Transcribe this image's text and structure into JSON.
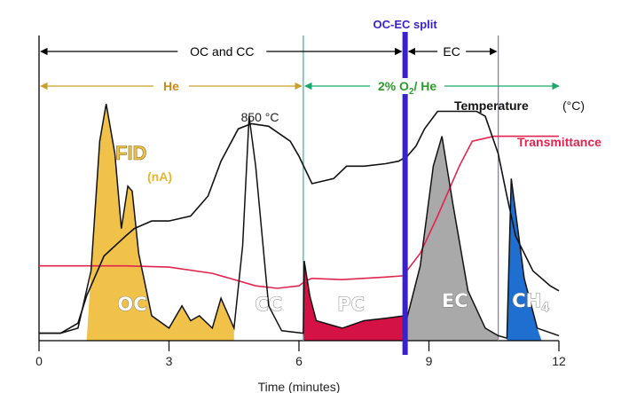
{
  "figure": {
    "split_label": "OC-EC split",
    "ranges": [
      {
        "label": "OC and CC",
        "x_start": 0,
        "x_end": 8.45
      },
      {
        "label": "EC",
        "x_start": 8.45,
        "x_end": 10.6
      }
    ],
    "gases": [
      {
        "label": "He",
        "x_start": 0,
        "x_end": 6.1
      },
      {
        "label": "2% O",
        "subscript": "2",
        "suffix": "/ He",
        "x_start": 6.1,
        "x_end": 12
      }
    ],
    "labels": {
      "temperature": "Temperature",
      "temperature_unit": "(°C)",
      "transmittance": "Transmittance",
      "fid": "FID",
      "fid_unit": "(nA)",
      "peak_temp": "850 °C",
      "oc": "OC",
      "cc": "CC",
      "pc": "PC",
      "ec": "EC",
      "ch4_main": "CH",
      "ch4_sub": "4"
    },
    "colors": {
      "oc_fill": "#f0c24a",
      "pc_fill": "#d51245",
      "ec_fill": "#a9a9a9",
      "ch4_fill": "#1f6fd1",
      "temperature_line": "#111111",
      "transmittance_line": "#e0244f",
      "split_line": "#3a22c9",
      "he_arrow": "#c8a02a",
      "o2_arrow": "#1aa86a",
      "he_text": "#c98c1a",
      "o2_text": "#2c9a2c",
      "transition_line_1": "#3bb0a0",
      "transition_line_2": "#8a6ad8"
    }
  },
  "chart_data": {
    "type": "line",
    "title": "",
    "xlabel": "Time (minutes)",
    "ylabel": "",
    "xlim": [
      0,
      12
    ],
    "x_ticks": [
      0,
      3,
      6,
      9,
      12
    ],
    "grid": false,
    "split_x": 8.45,
    "transition_lines_x": [
      6.1,
      10.6
    ],
    "series": [
      {
        "name": "Temperature",
        "x": [
          0,
          0.5,
          0.9,
          1.1,
          1.5,
          2.0,
          2.2,
          2.6,
          3.0,
          3.5,
          3.9,
          4.2,
          4.6,
          4.9,
          5.3,
          5.8,
          6.0,
          6.3,
          6.8,
          7.1,
          7.5,
          8.0,
          8.3,
          8.5,
          8.7,
          8.9,
          9.2,
          9.8,
          10.1,
          10.3,
          10.6,
          10.8,
          11.0,
          11.4,
          11.8,
          12.0
        ],
        "y": [
          3,
          3,
          7,
          18,
          34,
          42,
          45,
          48,
          48,
          50,
          58,
          72,
          85,
          87,
          86,
          80,
          74,
          63,
          65,
          70,
          70,
          71,
          72,
          74,
          78,
          85,
          92,
          92,
          92,
          90,
          75,
          58,
          42,
          28,
          22,
          20
        ]
      },
      {
        "name": "Transmittance",
        "x": [
          0,
          1.0,
          2.0,
          3.0,
          4.0,
          5.0,
          5.5,
          6.0,
          6.15,
          6.3,
          7.0,
          8.0,
          8.4,
          8.8,
          9.2,
          9.7,
          10.0,
          10.5,
          11.0,
          12.0
        ],
        "y": [
          30,
          30,
          30,
          29.5,
          27,
          22,
          21,
          22,
          24,
          25,
          24.5,
          25.5,
          26,
          35,
          50,
          70,
          80,
          82,
          82,
          82
        ]
      },
      {
        "name": "FID",
        "x": [
          0,
          0.5,
          0.9,
          1.2,
          1.4,
          1.55,
          1.75,
          1.9,
          2.05,
          2.15,
          2.3,
          2.6,
          3.0,
          3.3,
          3.5,
          3.7,
          4.0,
          4.2,
          4.5,
          4.7,
          4.85,
          5.0,
          5.3,
          5.6,
          6.1,
          6.12,
          6.25,
          6.4,
          7.0,
          7.5,
          8.0,
          8.45,
          8.45,
          8.8,
          9.1,
          9.3,
          9.55,
          9.9,
          10.3,
          10.6,
          10.8,
          10.9,
          11.2,
          11.5,
          12.0
        ],
        "y": [
          3,
          3,
          5,
          28,
          80,
          95,
          75,
          45,
          62,
          60,
          35,
          10,
          5,
          14,
          8,
          10,
          5,
          17,
          5,
          38,
          90,
          70,
          14,
          4,
          3,
          32,
          18,
          8,
          5,
          8,
          9,
          10,
          6,
          30,
          70,
          82,
          55,
          20,
          5,
          2,
          1,
          65,
          25,
          5,
          2
        ]
      }
    ]
  }
}
